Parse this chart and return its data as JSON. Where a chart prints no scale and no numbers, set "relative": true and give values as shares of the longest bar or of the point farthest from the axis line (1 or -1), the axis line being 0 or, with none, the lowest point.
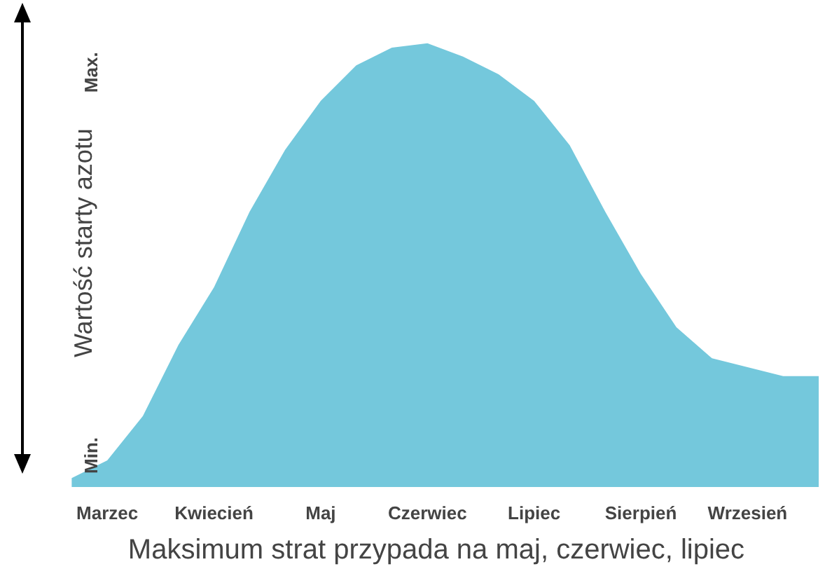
{
  "chart_data": {
    "type": "area",
    "relative": true,
    "xlabel": "Maksimum strat przypada na maj, czerwiec, lipiec",
    "ylabel": "Wartość starty azotu",
    "annotations": [
      "Min.",
      "Max."
    ],
    "categories": [
      null,
      "Marzec",
      null,
      null,
      "Kwiecień",
      null,
      null,
      "Maj",
      null,
      null,
      "Czerwiec",
      null,
      null,
      "Lipiec",
      null,
      null,
      "Sierpień",
      null,
      null,
      "Wrzesień",
      null,
      null
    ],
    "series": [
      {
        "color": "#74c8dc",
        "values": [
          0.02,
          0.06,
          0.16,
          0.32,
          0.45,
          0.62,
          0.76,
          0.87,
          0.95,
          0.99,
          1.0,
          0.97,
          0.93,
          0.87,
          0.77,
          0.62,
          0.48,
          0.36,
          0.29,
          0.27,
          0.25,
          0.25
        ]
      }
    ]
  }
}
